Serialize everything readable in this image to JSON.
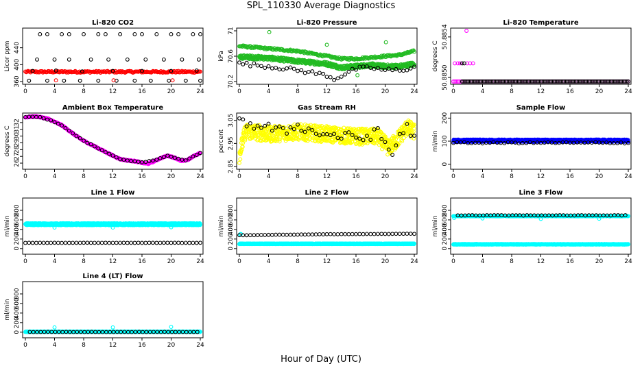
{
  "page": {
    "title": "SPL_110330  Average Diagnostics",
    "xlabel": "Hour of Day (UTC)"
  },
  "colors": {
    "black": "#000000",
    "red": "#ff0000",
    "green": "#22bb22",
    "magenta": "#ff00ff",
    "yellow": "#ffff00",
    "blue": "#0000ff",
    "cyan": "#00ffff"
  },
  "chart_data": [
    {
      "id": "co2",
      "type": "scatter",
      "title": "Li-820 CO2",
      "ylabel": "Licor ppm",
      "xlim": [
        0,
        24
      ],
      "ylim": [
        360,
        480
      ],
      "xticks": [
        0,
        4,
        8,
        12,
        16,
        20,
        24
      ],
      "yticks": [
        360,
        400,
        440
      ],
      "series": [
        {
          "color": "red",
          "gen": "flat",
          "y": 383,
          "noise": 2,
          "step": 0.12
        },
        {
          "color": "black",
          "points": [
            [
              2,
              472
            ],
            [
              3,
              472
            ],
            [
              5,
              472
            ],
            [
              6,
              472
            ],
            [
              8,
              472
            ],
            [
              10,
              472
            ],
            [
              11,
              472
            ],
            [
              13,
              472
            ],
            [
              15,
              472
            ],
            [
              16,
              472
            ],
            [
              18,
              472
            ],
            [
              20,
              472
            ],
            [
              21,
              472
            ],
            [
              23,
              472
            ],
            [
              24,
              472
            ],
            [
              1.6,
              412
            ],
            [
              4,
              412
            ],
            [
              6,
              412
            ],
            [
              9,
              412
            ],
            [
              11.4,
              412
            ],
            [
              14,
              412
            ],
            [
              16.5,
              412
            ],
            [
              19,
              412
            ],
            [
              21.5,
              412
            ],
            [
              23.8,
              412
            ],
            [
              0.5,
              362
            ],
            [
              3,
              362
            ],
            [
              5.3,
              362
            ],
            [
              7.5,
              362
            ],
            [
              10,
              362
            ],
            [
              12.5,
              362
            ],
            [
              15,
              362
            ],
            [
              17.2,
              362
            ],
            [
              19.7,
              362
            ],
            [
              22,
              362
            ],
            [
              24,
              362
            ],
            [
              1,
              385
            ],
            [
              4.2,
              386
            ],
            [
              7.8,
              384
            ],
            [
              12,
              385
            ],
            [
              16,
              385
            ],
            [
              20,
              385
            ],
            [
              23.5,
              386
            ]
          ]
        },
        {
          "color": "red",
          "points": [
            [
              4.2,
              363
            ],
            [
              12.1,
              363
            ],
            [
              20.2,
              363
            ]
          ]
        }
      ]
    },
    {
      "id": "pressure",
      "type": "scatter",
      "title": "Li-820 Pressure",
      "ylabel": "kPa",
      "xlim": [
        0,
        24
      ],
      "ylim": [
        70.2,
        71.0
      ],
      "xticks": [
        0,
        4,
        8,
        12,
        16,
        20,
        24
      ],
      "yticks": [
        70.2,
        70.6,
        71.0
      ],
      "series": [
        {
          "color": "green",
          "gen": "curve",
          "ys": [
            [
              0,
              70.76
            ],
            [
              4,
              70.72
            ],
            [
              8,
              70.68
            ],
            [
              12,
              70.6
            ],
            [
              14,
              70.56
            ],
            [
              16,
              70.56
            ],
            [
              18,
              70.58
            ],
            [
              20,
              70.6
            ],
            [
              22,
              70.62
            ],
            [
              24,
              70.68
            ]
          ],
          "noise": 0.015,
          "step": 0.1
        },
        {
          "color": "green",
          "gen": "curve",
          "ys": [
            [
              0,
              70.59
            ],
            [
              4,
              70.57
            ],
            [
              8,
              70.52
            ],
            [
              12,
              70.48
            ],
            [
              14,
              70.42
            ],
            [
              16,
              70.44
            ],
            [
              18,
              70.46
            ],
            [
              20,
              70.44
            ],
            [
              22,
              70.44
            ],
            [
              24,
              70.48
            ]
          ],
          "noise": 0.03,
          "step": 0.04
        },
        {
          "color": "green",
          "points": [
            [
              4.1,
              70.98
            ],
            [
              12,
              70.78
            ],
            [
              20.1,
              70.82
            ],
            [
              16.2,
              70.3
            ]
          ]
        },
        {
          "color": "black",
          "gen": "curve",
          "ys": [
            [
              0.4,
              70.48
            ],
            [
              4,
              70.44
            ],
            [
              8,
              70.38
            ],
            [
              12,
              70.3
            ],
            [
              13,
              70.24
            ],
            [
              16,
              70.4
            ],
            [
              18,
              70.42
            ],
            [
              20,
              70.38
            ],
            [
              22,
              70.38
            ],
            [
              24,
              70.42
            ]
          ],
          "noise": 0.03,
          "step": 0.5
        }
      ]
    },
    {
      "id": "temp",
      "type": "scatter",
      "title": "Li-820 Temperature",
      "ylabel": "degrees C",
      "xlim": [
        0,
        24
      ],
      "ylim": [
        50.885,
        50.8855
      ],
      "ytick_labels": [
        "50.8850",
        "50.8854"
      ],
      "yticks_v": [
        50.88504,
        50.88544
      ],
      "xticks": [
        0,
        4,
        8,
        12,
        16,
        20,
        24
      ],
      "series": [
        {
          "color": "magenta",
          "gen": "flat",
          "y": 50.885,
          "noise": 0,
          "step": 0.2
        },
        {
          "color": "black",
          "gen": "flat",
          "y": 50.885,
          "noise": 0,
          "step": 0.2,
          "from": 1.2
        },
        {
          "color": "magenta",
          "points": [
            [
              0.2,
              50.88518
            ],
            [
              0.6,
              50.88518
            ],
            [
              0.9,
              50.88518
            ],
            [
              1.9,
              50.88518
            ],
            [
              2.3,
              50.88518
            ],
            [
              2.7,
              50.88518
            ],
            [
              1.8,
              50.8855
            ]
          ]
        },
        {
          "color": "black",
          "points": [
            [
              1.2,
              50.88518
            ],
            [
              1.5,
              50.88518
            ]
          ]
        }
      ]
    },
    {
      "id": "ambient",
      "type": "scatter",
      "title": "Ambient Box Temperature",
      "ylabel": "degrees C",
      "xlim": [
        0,
        24
      ],
      "ylim": [
        25.5,
        33
      ],
      "xticks": [
        0,
        4,
        8,
        12,
        16,
        20,
        24
      ],
      "yticks": [
        26,
        27,
        28,
        29,
        30,
        31,
        32
      ],
      "series": [
        {
          "color": "magenta",
          "gen": "curve",
          "ys": [
            [
              0,
              32.8
            ],
            [
              1.5,
              32.9
            ],
            [
              3,
              32.6
            ],
            [
              5,
              31.6
            ],
            [
              7,
              30
            ],
            [
              8,
              29.3
            ],
            [
              10,
              28.2
            ],
            [
              12,
              27.1
            ],
            [
              13,
              26.6
            ],
            [
              14,
              26.4
            ],
            [
              15,
              26.3
            ],
            [
              16,
              26.05
            ],
            [
              16.8,
              25.9
            ],
            [
              17.5,
              26.2
            ],
            [
              18.5,
              26.7
            ],
            [
              19.5,
              27.1
            ],
            [
              20.5,
              26.8
            ],
            [
              21.4,
              26.3
            ],
            [
              22.3,
              26.5
            ],
            [
              23.2,
              27.1
            ],
            [
              24,
              27.5
            ]
          ],
          "noise": 0.08,
          "step": 0.06
        },
        {
          "color": "black",
          "gen": "curve",
          "ys": [
            [
              0.6,
              32.85
            ],
            [
              2,
              32.8
            ],
            [
              3.5,
              32.3
            ],
            [
              5,
              31.6
            ],
            [
              7,
              30
            ],
            [
              8,
              29.3
            ],
            [
              10,
              28.2
            ],
            [
              12,
              27.1
            ],
            [
              13,
              26.6
            ],
            [
              14,
              26.4
            ],
            [
              15,
              26.3
            ],
            [
              16,
              26.1
            ],
            [
              18,
              26.5
            ],
            [
              19.5,
              27.1
            ],
            [
              20.5,
              26.8
            ],
            [
              22,
              26.4
            ],
            [
              23,
              27.0
            ],
            [
              24,
              27.5
            ]
          ],
          "noise": 0.04,
          "step": 0.5
        }
      ]
    },
    {
      "id": "rh",
      "type": "scatter",
      "title": "Gas Stream RH",
      "ylabel": "percent",
      "xlim": [
        0,
        24
      ],
      "ylim": [
        2.85,
        3.07
      ],
      "xticks": [
        0,
        4,
        8,
        12,
        16,
        20,
        24
      ],
      "yticks": [
        2.85,
        2.95,
        3.05
      ],
      "series": [
        {
          "color": "yellow",
          "gen": "curve",
          "ys": [
            [
              0,
              2.9
            ],
            [
              0.8,
              3.0
            ],
            [
              2,
              3.0
            ],
            [
              4,
              2.99
            ],
            [
              8,
              3.0
            ],
            [
              12,
              2.99
            ],
            [
              16,
              2.98
            ],
            [
              19,
              2.98
            ],
            [
              20.5,
              2.93
            ],
            [
              21.5,
              2.96
            ],
            [
              23,
              3.02
            ],
            [
              24,
              3.0
            ]
          ],
          "noise": 0.035,
          "step": 0.03
        },
        {
          "color": "black",
          "gen": "curve",
          "ys": [
            [
              0.8,
              3.04
            ],
            [
              2,
              3.03
            ],
            [
              4,
              3.02
            ],
            [
              6,
              3.0
            ],
            [
              8,
              3.03
            ],
            [
              10,
              3.0
            ],
            [
              12,
              2.99
            ],
            [
              14,
              2.98
            ],
            [
              16,
              2.98
            ],
            [
              17,
              2.97
            ],
            [
              19,
              3.0
            ],
            [
              20.2,
              2.94
            ],
            [
              21,
              2.9
            ],
            [
              22,
              2.99
            ],
            [
              23,
              3.02
            ],
            [
              24,
              2.97
            ]
          ],
          "noise": 0.02,
          "step": 0.5
        }
      ]
    },
    {
      "id": "sample",
      "type": "scatter",
      "title": "Sample Flow",
      "ylabel": "ml/min",
      "xlim": [
        0,
        24
      ],
      "ylim": [
        -10,
        210
      ],
      "xticks": [
        0,
        4,
        8,
        12,
        16,
        20,
        24
      ],
      "yticks": [
        0,
        100,
        200
      ],
      "series": [
        {
          "color": "blue",
          "gen": "flat",
          "y": 102,
          "noise": 5,
          "step": 0.025
        },
        {
          "color": "black",
          "gen": "flat",
          "y": 93,
          "noise": 3,
          "step": 0.5
        }
      ]
    },
    {
      "id": "line1",
      "type": "scatter",
      "title": "Line 1 Flow",
      "ylabel": "ml/min",
      "xlim": [
        0,
        24
      ],
      "ylim": [
        -60,
        1000
      ],
      "xticks": [
        0,
        4,
        8,
        12,
        16,
        20,
        24
      ],
      "yticks": [
        0,
        200,
        400,
        600,
        800
      ],
      "series": [
        {
          "color": "cyan",
          "gen": "flat",
          "y": 510,
          "noise": 20,
          "step": 0.02
        },
        {
          "color": "black",
          "gen": "flat",
          "y": 120,
          "noise": 2,
          "step": 0.5
        },
        {
          "color": "cyan",
          "points": [
            [
              4,
              440
            ],
            [
              12,
              440
            ],
            [
              20,
              445
            ]
          ]
        }
      ]
    },
    {
      "id": "line2",
      "type": "scatter",
      "title": "Line 2 Flow",
      "ylabel": "ml/min",
      "xlim": [
        0,
        24
      ],
      "ylim": [
        -60,
        1000
      ],
      "xticks": [
        0,
        4,
        8,
        12,
        16,
        20,
        24
      ],
      "yticks": [
        0,
        200,
        400,
        600,
        800
      ],
      "series": [
        {
          "color": "cyan",
          "gen": "flat",
          "y": 100,
          "noise": 6,
          "step": 0.025
        },
        {
          "color": "cyan",
          "points": [
            [
              0.1,
              300
            ],
            [
              0.2,
              305
            ]
          ]
        },
        {
          "color": "black",
          "gen": "curve",
          "ys": [
            [
              0.6,
              280
            ],
            [
              12,
              300
            ],
            [
              24,
              310
            ]
          ],
          "noise": 2,
          "step": 0.5
        }
      ]
    },
    {
      "id": "line3",
      "type": "scatter",
      "title": "Line 3 Flow",
      "ylabel": "ml/min",
      "xlim": [
        0,
        24
      ],
      "ylim": [
        -60,
        1000
      ],
      "xticks": [
        0,
        4,
        8,
        12,
        16,
        20,
        24
      ],
      "yticks": [
        0,
        200,
        400,
        600,
        800
      ],
      "series": [
        {
          "color": "cyan",
          "gen": "flat",
          "y": 90,
          "noise": 5,
          "step": 0.025
        },
        {
          "color": "cyan",
          "gen": "flat",
          "y": 680,
          "noise": 6,
          "step": 0.06
        },
        {
          "color": "cyan",
          "points": [
            [
              0.1,
              640
            ],
            [
              4,
              630
            ],
            [
              12,
              620
            ],
            [
              20,
              625
            ]
          ]
        },
        {
          "color": "black",
          "gen": "flat",
          "y": 695,
          "noise": 3,
          "step": 0.5,
          "from": 0.6
        }
      ]
    },
    {
      "id": "line4",
      "type": "scatter",
      "title": "Line 4 (LT) Flow",
      "ylabel": "ml/min",
      "xlim": [
        0,
        24
      ],
      "ylim": [
        -60,
        1000
      ],
      "xticks": [
        0,
        4,
        8,
        12,
        16,
        20,
        24
      ],
      "yticks": [
        0,
        200,
        400,
        600,
        800
      ],
      "series": [
        {
          "color": "cyan",
          "gen": "flat",
          "y": 8,
          "noise": 6,
          "step": 0.025
        },
        {
          "color": "cyan",
          "points": [
            [
              4,
              100
            ],
            [
              12,
              100
            ],
            [
              20,
              110
            ]
          ]
        },
        {
          "color": "black",
          "gen": "flat",
          "y": 5,
          "noise": 2,
          "step": 0.5,
          "from": 0.6
        }
      ]
    }
  ]
}
